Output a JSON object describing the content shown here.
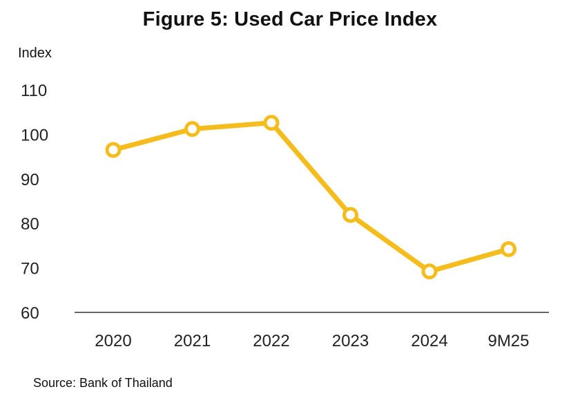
{
  "chart_data": {
    "type": "line",
    "title": "Figure 5: Used Car Price Index",
    "ylabel": "Index",
    "xlabel": "",
    "categories": [
      "2020",
      "2021",
      "2022",
      "2023",
      "2024",
      "9M25"
    ],
    "series": [
      {
        "name": "Used Car Price Index",
        "values": [
          96.5,
          101.2,
          102.6,
          81.9,
          69.2,
          74.2
        ]
      }
    ],
    "ylim": [
      60,
      110
    ],
    "yticks": [
      60,
      70,
      80,
      90,
      100,
      110
    ],
    "grid": false,
    "source": "Source: Bank of Thailand",
    "colors": {
      "line": "#F4BC1C",
      "axis": "#333333"
    }
  }
}
